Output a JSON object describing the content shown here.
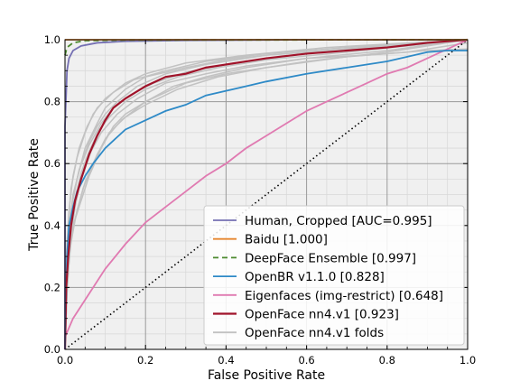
{
  "chart_data": {
    "type": "line",
    "title": "",
    "xlabel": "False Positive Rate",
    "ylabel": "True Positive Rate",
    "xlim": [
      0.0,
      1.0
    ],
    "ylim": [
      0.0,
      1.0
    ],
    "x_ticks": [
      "0.0",
      "0.2",
      "0.4",
      "0.6",
      "0.8",
      "1.0"
    ],
    "y_ticks": [
      "0.0",
      "0.2",
      "0.4",
      "0.6",
      "0.8",
      "1.0"
    ],
    "grid": "major and minor",
    "legend_position": "lower-right",
    "chance_line": {
      "points": [
        [
          0,
          0
        ],
        [
          1,
          1
        ]
      ],
      "style": "dotted",
      "color": "#000000"
    },
    "series": [
      {
        "name": "Human, Cropped [AUC=0.995]",
        "color": "#7570b3",
        "style": "solid",
        "points": [
          [
            0,
            0
          ],
          [
            0,
            0.72
          ],
          [
            0.005,
            0.9
          ],
          [
            0.01,
            0.94
          ],
          [
            0.02,
            0.965
          ],
          [
            0.04,
            0.98
          ],
          [
            0.08,
            0.99
          ],
          [
            0.15,
            0.995
          ],
          [
            0.3,
            0.998
          ],
          [
            0.6,
            1.0
          ],
          [
            1,
            1
          ]
        ]
      },
      {
        "name": "Baidu [1.000]",
        "color": "#e6862e",
        "style": "solid",
        "points": [
          [
            0,
            1.0
          ],
          [
            1,
            1.0
          ]
        ]
      },
      {
        "name": "DeepFace Ensemble [0.997]",
        "color": "#4c8a2e",
        "style": "dashed",
        "points": [
          [
            0,
            0.95
          ],
          [
            0.005,
            0.975
          ],
          [
            0.02,
            0.99
          ],
          [
            0.05,
            0.997
          ],
          [
            0.15,
            0.999
          ],
          [
            1,
            1.0
          ]
        ]
      },
      {
        "name": "OpenBR v1.1.0 [0.828]",
        "color": "#2e8ac7",
        "style": "solid",
        "points": [
          [
            0,
            0
          ],
          [
            0.005,
            0.3
          ],
          [
            0.01,
            0.4
          ],
          [
            0.02,
            0.46
          ],
          [
            0.03,
            0.51
          ],
          [
            0.05,
            0.56
          ],
          [
            0.07,
            0.6
          ],
          [
            0.1,
            0.65
          ],
          [
            0.15,
            0.71
          ],
          [
            0.2,
            0.74
          ],
          [
            0.25,
            0.77
          ],
          [
            0.3,
            0.79
          ],
          [
            0.35,
            0.82
          ],
          [
            0.4,
            0.835
          ],
          [
            0.45,
            0.85
          ],
          [
            0.5,
            0.865
          ],
          [
            0.6,
            0.89
          ],
          [
            0.7,
            0.91
          ],
          [
            0.8,
            0.93
          ],
          [
            0.9,
            0.96
          ],
          [
            0.95,
            0.965
          ],
          [
            1,
            0.965
          ]
        ]
      },
      {
        "name": "Eigenfaces (img-restrict) [0.648]",
        "color": "#e07ab1",
        "style": "solid",
        "points": [
          [
            0,
            0.04
          ],
          [
            0.01,
            0.07
          ],
          [
            0.02,
            0.1
          ],
          [
            0.05,
            0.16
          ],
          [
            0.08,
            0.22
          ],
          [
            0.1,
            0.26
          ],
          [
            0.15,
            0.34
          ],
          [
            0.2,
            0.41
          ],
          [
            0.25,
            0.46
          ],
          [
            0.3,
            0.51
          ],
          [
            0.35,
            0.56
          ],
          [
            0.4,
            0.6
          ],
          [
            0.45,
            0.65
          ],
          [
            0.5,
            0.69
          ],
          [
            0.55,
            0.73
          ],
          [
            0.6,
            0.77
          ],
          [
            0.65,
            0.8
          ],
          [
            0.7,
            0.83
          ],
          [
            0.75,
            0.86
          ],
          [
            0.8,
            0.89
          ],
          [
            0.85,
            0.91
          ],
          [
            0.9,
            0.94
          ],
          [
            0.95,
            0.97
          ],
          [
            1,
            1.0
          ]
        ]
      },
      {
        "name": "OpenFace nn4.v1 [0.923]",
        "color": "#a0132a",
        "style": "solid",
        "points": [
          [
            0,
            0
          ],
          [
            0.003,
            0.2
          ],
          [
            0.008,
            0.3
          ],
          [
            0.015,
            0.4
          ],
          [
            0.025,
            0.48
          ],
          [
            0.04,
            0.55
          ],
          [
            0.06,
            0.63
          ],
          [
            0.08,
            0.69
          ],
          [
            0.1,
            0.74
          ],
          [
            0.12,
            0.78
          ],
          [
            0.15,
            0.81
          ],
          [
            0.2,
            0.85
          ],
          [
            0.25,
            0.88
          ],
          [
            0.3,
            0.89
          ],
          [
            0.35,
            0.91
          ],
          [
            0.4,
            0.92
          ],
          [
            0.5,
            0.94
          ],
          [
            0.6,
            0.955
          ],
          [
            0.7,
            0.965
          ],
          [
            0.8,
            0.975
          ],
          [
            0.9,
            0.99
          ],
          [
            1,
            1.0
          ]
        ]
      },
      {
        "name": "OpenFace nn4.v1 folds",
        "color": "#c2c2c2",
        "style": "solid",
        "folds": [
          [
            [
              0,
              0
            ],
            [
              0.005,
              0.3
            ],
            [
              0.015,
              0.45
            ],
            [
              0.03,
              0.55
            ],
            [
              0.05,
              0.65
            ],
            [
              0.08,
              0.73
            ],
            [
              0.1,
              0.78
            ],
            [
              0.15,
              0.84
            ],
            [
              0.2,
              0.88
            ],
            [
              0.3,
              0.91
            ],
            [
              0.4,
              0.935
            ],
            [
              0.5,
              0.95
            ],
            [
              0.7,
              0.97
            ],
            [
              0.85,
              0.98
            ],
            [
              1,
              1.0
            ]
          ],
          [
            [
              0,
              0
            ],
            [
              0.003,
              0.15
            ],
            [
              0.01,
              0.3
            ],
            [
              0.02,
              0.4
            ],
            [
              0.04,
              0.48
            ],
            [
              0.06,
              0.56
            ],
            [
              0.09,
              0.65
            ],
            [
              0.12,
              0.72
            ],
            [
              0.15,
              0.76
            ],
            [
              0.2,
              0.8
            ],
            [
              0.3,
              0.86
            ],
            [
              0.4,
              0.89
            ],
            [
              0.5,
              0.91
            ],
            [
              0.6,
              0.93
            ],
            [
              0.8,
              0.96
            ],
            [
              1,
              1.0
            ]
          ],
          [
            [
              0,
              0
            ],
            [
              0.004,
              0.25
            ],
            [
              0.01,
              0.38
            ],
            [
              0.02,
              0.5
            ],
            [
              0.04,
              0.6
            ],
            [
              0.06,
              0.67
            ],
            [
              0.08,
              0.72
            ],
            [
              0.1,
              0.76
            ],
            [
              0.13,
              0.8
            ],
            [
              0.18,
              0.85
            ],
            [
              0.25,
              0.89
            ],
            [
              0.35,
              0.92
            ],
            [
              0.5,
              0.95
            ],
            [
              0.7,
              0.97
            ],
            [
              1,
              1.0
            ]
          ],
          [
            [
              0,
              0
            ],
            [
              0.005,
              0.18
            ],
            [
              0.012,
              0.32
            ],
            [
              0.025,
              0.42
            ],
            [
              0.045,
              0.52
            ],
            [
              0.07,
              0.6
            ],
            [
              0.1,
              0.68
            ],
            [
              0.14,
              0.74
            ],
            [
              0.2,
              0.8
            ],
            [
              0.27,
              0.85
            ],
            [
              0.35,
              0.88
            ],
            [
              0.45,
              0.91
            ],
            [
              0.6,
              0.94
            ],
            [
              0.8,
              0.965
            ],
            [
              1,
              1.0
            ]
          ],
          [
            [
              0,
              0
            ],
            [
              0.003,
              0.28
            ],
            [
              0.008,
              0.4
            ],
            [
              0.015,
              0.52
            ],
            [
              0.03,
              0.62
            ],
            [
              0.05,
              0.7
            ],
            [
              0.07,
              0.76
            ],
            [
              0.1,
              0.81
            ],
            [
              0.15,
              0.86
            ],
            [
              0.2,
              0.89
            ],
            [
              0.3,
              0.925
            ],
            [
              0.45,
              0.95
            ],
            [
              0.65,
              0.975
            ],
            [
              1,
              1.0
            ]
          ],
          [
            [
              0,
              0
            ],
            [
              0.006,
              0.22
            ],
            [
              0.015,
              0.35
            ],
            [
              0.03,
              0.45
            ],
            [
              0.05,
              0.54
            ],
            [
              0.08,
              0.63
            ],
            [
              0.11,
              0.7
            ],
            [
              0.15,
              0.75
            ],
            [
              0.2,
              0.79
            ],
            [
              0.28,
              0.84
            ],
            [
              0.38,
              0.88
            ],
            [
              0.5,
              0.91
            ],
            [
              0.7,
              0.945
            ],
            [
              0.9,
              0.965
            ],
            [
              1,
              0.97
            ]
          ],
          [
            [
              0,
              0
            ],
            [
              0.004,
              0.32
            ],
            [
              0.01,
              0.45
            ],
            [
              0.02,
              0.56
            ],
            [
              0.035,
              0.65
            ],
            [
              0.055,
              0.72
            ],
            [
              0.08,
              0.78
            ],
            [
              0.12,
              0.83
            ],
            [
              0.17,
              0.87
            ],
            [
              0.25,
              0.9
            ],
            [
              0.35,
              0.93
            ],
            [
              0.5,
              0.955
            ],
            [
              0.7,
              0.975
            ],
            [
              1,
              1.0
            ]
          ],
          [
            [
              0,
              0
            ],
            [
              0.005,
              0.2
            ],
            [
              0.012,
              0.34
            ],
            [
              0.025,
              0.46
            ],
            [
              0.04,
              0.55
            ],
            [
              0.065,
              0.64
            ],
            [
              0.09,
              0.7
            ],
            [
              0.13,
              0.76
            ],
            [
              0.18,
              0.81
            ],
            [
              0.25,
              0.86
            ],
            [
              0.35,
              0.89
            ],
            [
              0.45,
              0.915
            ],
            [
              0.6,
              0.94
            ],
            [
              0.75,
              0.95
            ],
            [
              0.85,
              0.96
            ],
            [
              1,
              0.99
            ]
          ],
          [
            [
              0,
              0
            ],
            [
              0.003,
              0.26
            ],
            [
              0.009,
              0.38
            ],
            [
              0.02,
              0.49
            ],
            [
              0.035,
              0.58
            ],
            [
              0.06,
              0.66
            ],
            [
              0.09,
              0.73
            ],
            [
              0.12,
              0.78
            ],
            [
              0.16,
              0.82
            ],
            [
              0.22,
              0.86
            ],
            [
              0.3,
              0.895
            ],
            [
              0.42,
              0.925
            ],
            [
              0.6,
              0.955
            ],
            [
              0.8,
              0.975
            ],
            [
              1,
              1.0
            ]
          ],
          [
            [
              0,
              0
            ],
            [
              0.004,
              0.23
            ],
            [
              0.011,
              0.36
            ],
            [
              0.022,
              0.47
            ],
            [
              0.04,
              0.57
            ],
            [
              0.06,
              0.64
            ],
            [
              0.085,
              0.71
            ],
            [
              0.11,
              0.75
            ],
            [
              0.15,
              0.8
            ],
            [
              0.2,
              0.84
            ],
            [
              0.28,
              0.88
            ],
            [
              0.38,
              0.91
            ],
            [
              0.5,
              0.935
            ],
            [
              0.7,
              0.96
            ],
            [
              1,
              1.0
            ]
          ]
        ]
      }
    ]
  }
}
